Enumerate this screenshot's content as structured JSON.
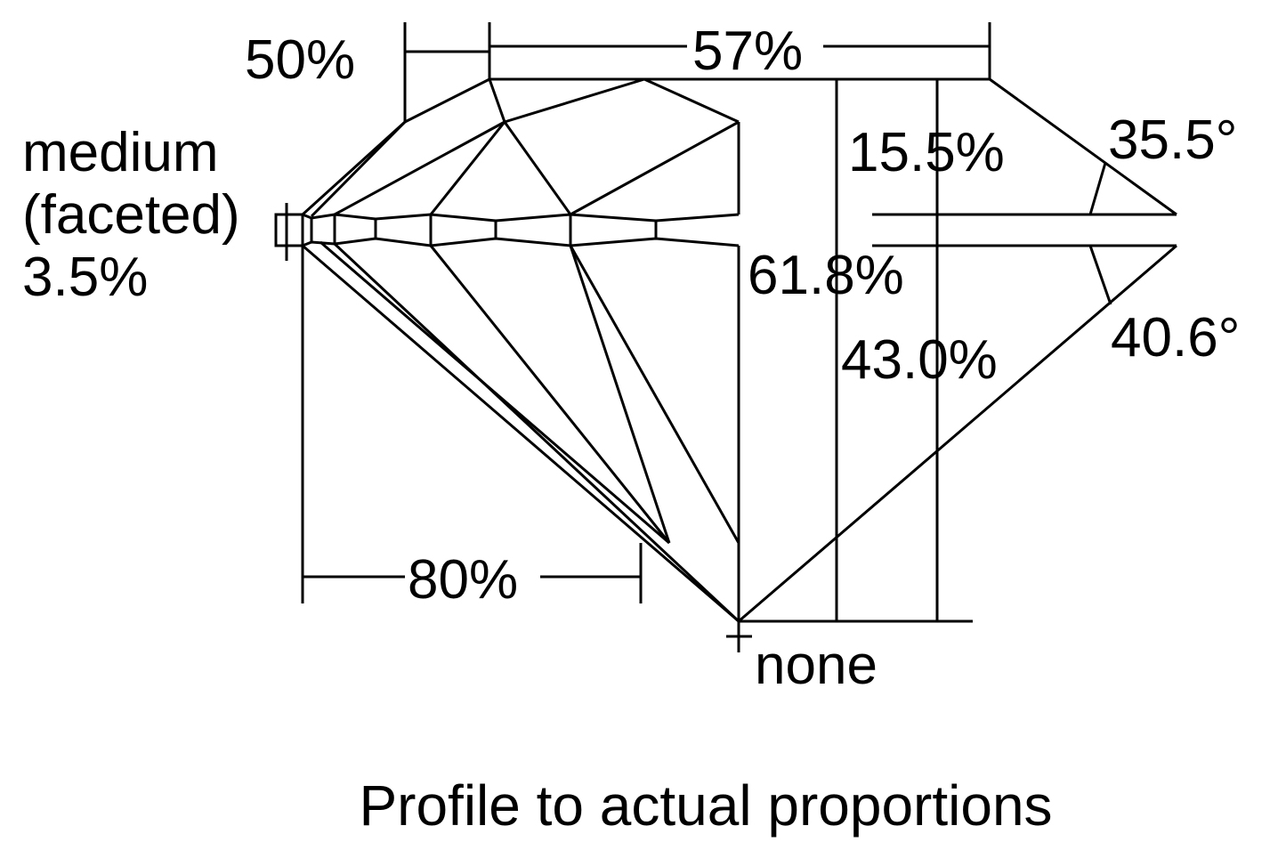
{
  "diagram": {
    "caption": "Profile to actual proportions",
    "labels": {
      "star_length": "50%",
      "table": "57%",
      "girdle_line1": "medium",
      "girdle_line2": "(faceted)",
      "girdle_pct": "3.5%",
      "crown_height": "15.5%",
      "crown_angle": "35.5°",
      "total_depth": "61.8%",
      "pavilion_angle": "40.6°",
      "pavilion_depth": "43.0%",
      "lower_half_length": "80%",
      "culet": "none"
    },
    "colors": {
      "stroke": "#000000",
      "background": "#ffffff"
    }
  }
}
